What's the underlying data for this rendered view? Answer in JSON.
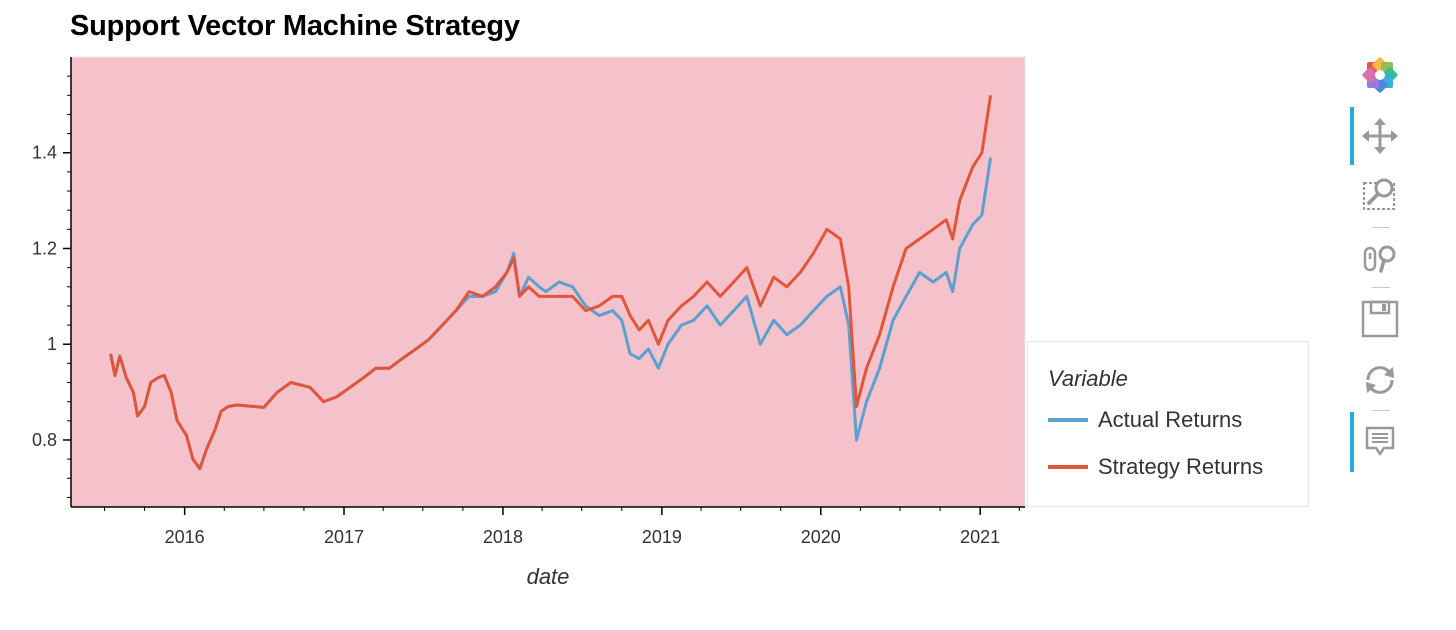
{
  "chart_data": {
    "type": "line",
    "title": "Support Vector Machine Strategy",
    "xlabel": "date",
    "ylabel": "",
    "xlim": [
      "2015-04-15",
      "2021-04-14"
    ],
    "ylim": [
      0.66,
      1.6
    ],
    "x_ticks": [
      "2016",
      "2017",
      "2018",
      "2019",
      "2020",
      "2021"
    ],
    "y_ticks": [
      {
        "value": 0.8,
        "label": "0.8"
      },
      {
        "value": 1.0,
        "label": "1"
      },
      {
        "value": 1.2,
        "label": "1.2"
      },
      {
        "value": 1.4,
        "label": "1.4"
      }
    ],
    "legend_title": "Variable",
    "legend_position": "right",
    "plot_background": "#f5c2cb",
    "series": [
      {
        "name": "Actual Returns",
        "color": "#5aa0d0",
        "points": [
          [
            "2015-07-15",
            0.98
          ],
          [
            "2015-07-25",
            0.935
          ],
          [
            "2015-08-05",
            0.975
          ],
          [
            "2015-08-20",
            0.93
          ],
          [
            "2015-09-05",
            0.9
          ],
          [
            "2015-09-15",
            0.85
          ],
          [
            "2015-10-01",
            0.87
          ],
          [
            "2015-10-15",
            0.92
          ],
          [
            "2015-11-01",
            0.93
          ],
          [
            "2015-11-15",
            0.935
          ],
          [
            "2015-12-01",
            0.9
          ],
          [
            "2015-12-15",
            0.84
          ],
          [
            "2016-01-05",
            0.81
          ],
          [
            "2016-01-20",
            0.76
          ],
          [
            "2016-02-05",
            0.74
          ],
          [
            "2016-02-20",
            0.78
          ],
          [
            "2016-03-10",
            0.82
          ],
          [
            "2016-03-25",
            0.86
          ],
          [
            "2016-04-10",
            0.87
          ],
          [
            "2016-05-01",
            0.873
          ],
          [
            "2016-07-01",
            0.868
          ],
          [
            "2016-08-01",
            0.9
          ],
          [
            "2016-09-01",
            0.92
          ],
          [
            "2016-10-15",
            0.91
          ],
          [
            "2016-11-15",
            0.88
          ],
          [
            "2016-12-15",
            0.89
          ],
          [
            "2017-01-15",
            0.91
          ],
          [
            "2017-02-15",
            0.93
          ],
          [
            "2017-03-15",
            0.95
          ],
          [
            "2017-04-15",
            0.95
          ],
          [
            "2017-05-15",
            0.97
          ],
          [
            "2017-06-15",
            0.99
          ],
          [
            "2017-07-15",
            1.01
          ],
          [
            "2017-08-15",
            1.04
          ],
          [
            "2017-09-15",
            1.07
          ],
          [
            "2017-10-15",
            1.1
          ],
          [
            "2017-11-15",
            1.1
          ],
          [
            "2017-12-15",
            1.11
          ],
          [
            "2018-01-10",
            1.15
          ],
          [
            "2018-01-26",
            1.19
          ],
          [
            "2018-02-08",
            1.1
          ],
          [
            "2018-03-01",
            1.14
          ],
          [
            "2018-03-25",
            1.12
          ],
          [
            "2018-04-10",
            1.11
          ],
          [
            "2018-05-10",
            1.13
          ],
          [
            "2018-06-10",
            1.12
          ],
          [
            "2018-07-10",
            1.08
          ],
          [
            "2018-08-10",
            1.06
          ],
          [
            "2018-09-10",
            1.07
          ],
          [
            "2018-10-01",
            1.05
          ],
          [
            "2018-10-20",
            0.98
          ],
          [
            "2018-11-10",
            0.97
          ],
          [
            "2018-12-01",
            0.99
          ],
          [
            "2018-12-24",
            0.95
          ],
          [
            "2019-01-15",
            1.0
          ],
          [
            "2019-02-15",
            1.04
          ],
          [
            "2019-03-15",
            1.05
          ],
          [
            "2019-04-15",
            1.08
          ],
          [
            "2019-05-15",
            1.04
          ],
          [
            "2019-06-15",
            1.07
          ],
          [
            "2019-07-15",
            1.1
          ],
          [
            "2019-08-15",
            1.0
          ],
          [
            "2019-09-15",
            1.05
          ],
          [
            "2019-10-15",
            1.02
          ],
          [
            "2019-11-15",
            1.04
          ],
          [
            "2019-12-15",
            1.07
          ],
          [
            "2020-01-15",
            1.1
          ],
          [
            "2020-02-15",
            1.12
          ],
          [
            "2020-03-05",
            1.04
          ],
          [
            "2020-03-23",
            0.8
          ],
          [
            "2020-04-15",
            0.88
          ],
          [
            "2020-05-15",
            0.95
          ],
          [
            "2020-06-15",
            1.05
          ],
          [
            "2020-07-15",
            1.1
          ],
          [
            "2020-08-15",
            1.15
          ],
          [
            "2020-09-15",
            1.13
          ],
          [
            "2020-10-15",
            1.15
          ],
          [
            "2020-10-30",
            1.11
          ],
          [
            "2020-11-15",
            1.2
          ],
          [
            "2020-12-15",
            1.25
          ],
          [
            "2021-01-05",
            1.27
          ],
          [
            "2021-01-25",
            1.39
          ]
        ]
      },
      {
        "name": "Strategy Returns",
        "color": "#e0563a",
        "points": [
          [
            "2015-07-15",
            0.98
          ],
          [
            "2015-07-25",
            0.935
          ],
          [
            "2015-08-05",
            0.975
          ],
          [
            "2015-08-20",
            0.93
          ],
          [
            "2015-09-05",
            0.9
          ],
          [
            "2015-09-15",
            0.85
          ],
          [
            "2015-10-01",
            0.87
          ],
          [
            "2015-10-15",
            0.92
          ],
          [
            "2015-11-01",
            0.93
          ],
          [
            "2015-11-15",
            0.935
          ],
          [
            "2015-12-01",
            0.9
          ],
          [
            "2015-12-15",
            0.84
          ],
          [
            "2016-01-05",
            0.81
          ],
          [
            "2016-01-20",
            0.76
          ],
          [
            "2016-02-05",
            0.74
          ],
          [
            "2016-02-20",
            0.78
          ],
          [
            "2016-03-10",
            0.82
          ],
          [
            "2016-03-25",
            0.86
          ],
          [
            "2016-04-10",
            0.87
          ],
          [
            "2016-05-01",
            0.873
          ],
          [
            "2016-07-01",
            0.868
          ],
          [
            "2016-08-01",
            0.9
          ],
          [
            "2016-09-01",
            0.92
          ],
          [
            "2016-10-15",
            0.91
          ],
          [
            "2016-11-15",
            0.88
          ],
          [
            "2016-12-15",
            0.89
          ],
          [
            "2017-01-15",
            0.91
          ],
          [
            "2017-02-15",
            0.93
          ],
          [
            "2017-03-15",
            0.95
          ],
          [
            "2017-04-15",
            0.95
          ],
          [
            "2017-05-15",
            0.97
          ],
          [
            "2017-06-15",
            0.99
          ],
          [
            "2017-07-15",
            1.01
          ],
          [
            "2017-08-15",
            1.04
          ],
          [
            "2017-09-15",
            1.07
          ],
          [
            "2017-10-15",
            1.11
          ],
          [
            "2017-11-15",
            1.1
          ],
          [
            "2017-12-15",
            1.12
          ],
          [
            "2018-01-10",
            1.15
          ],
          [
            "2018-01-26",
            1.18
          ],
          [
            "2018-02-08",
            1.1
          ],
          [
            "2018-03-01",
            1.12
          ],
          [
            "2018-03-25",
            1.1
          ],
          [
            "2018-04-10",
            1.1
          ],
          [
            "2018-05-10",
            1.1
          ],
          [
            "2018-06-10",
            1.1
          ],
          [
            "2018-07-10",
            1.07
          ],
          [
            "2018-08-10",
            1.08
          ],
          [
            "2018-09-10",
            1.1
          ],
          [
            "2018-10-01",
            1.1
          ],
          [
            "2018-10-20",
            1.06
          ],
          [
            "2018-11-10",
            1.03
          ],
          [
            "2018-12-01",
            1.05
          ],
          [
            "2018-12-24",
            1.0
          ],
          [
            "2019-01-15",
            1.05
          ],
          [
            "2019-02-15",
            1.08
          ],
          [
            "2019-03-15",
            1.1
          ],
          [
            "2019-04-15",
            1.13
          ],
          [
            "2019-05-15",
            1.1
          ],
          [
            "2019-06-15",
            1.13
          ],
          [
            "2019-07-15",
            1.16
          ],
          [
            "2019-08-15",
            1.08
          ],
          [
            "2019-09-15",
            1.14
          ],
          [
            "2019-10-15",
            1.12
          ],
          [
            "2019-11-15",
            1.15
          ],
          [
            "2019-12-15",
            1.19
          ],
          [
            "2020-01-15",
            1.24
          ],
          [
            "2020-02-15",
            1.22
          ],
          [
            "2020-03-05",
            1.12
          ],
          [
            "2020-03-23",
            0.87
          ],
          [
            "2020-04-15",
            0.95
          ],
          [
            "2020-05-15",
            1.02
          ],
          [
            "2020-06-15",
            1.12
          ],
          [
            "2020-07-15",
            1.2
          ],
          [
            "2020-08-15",
            1.22
          ],
          [
            "2020-09-15",
            1.24
          ],
          [
            "2020-10-15",
            1.26
          ],
          [
            "2020-10-30",
            1.22
          ],
          [
            "2020-11-15",
            1.3
          ],
          [
            "2020-12-15",
            1.37
          ],
          [
            "2021-01-05",
            1.4
          ],
          [
            "2021-01-25",
            1.52
          ]
        ]
      }
    ]
  },
  "toolbar": {
    "tools": [
      {
        "name": "bokeh-logo",
        "icon": "bokeh-logo-icon",
        "interactable": false,
        "active": false
      },
      {
        "name": "pan-tool",
        "icon": "pan-icon",
        "interactable": true,
        "active": true
      },
      {
        "name": "box-zoom-tool",
        "icon": "box-zoom-icon",
        "interactable": true,
        "active": false
      },
      {
        "name": "wheel-zoom-tool",
        "icon": "wheel-zoom-icon",
        "interactable": true,
        "active": false
      },
      {
        "name": "save-tool",
        "icon": "save-icon",
        "interactable": true,
        "active": false
      },
      {
        "name": "reset-tool",
        "icon": "reset-icon",
        "interactable": true,
        "active": false
      },
      {
        "name": "hover-tool",
        "icon": "hover-icon",
        "interactable": true,
        "active": true
      }
    ]
  }
}
